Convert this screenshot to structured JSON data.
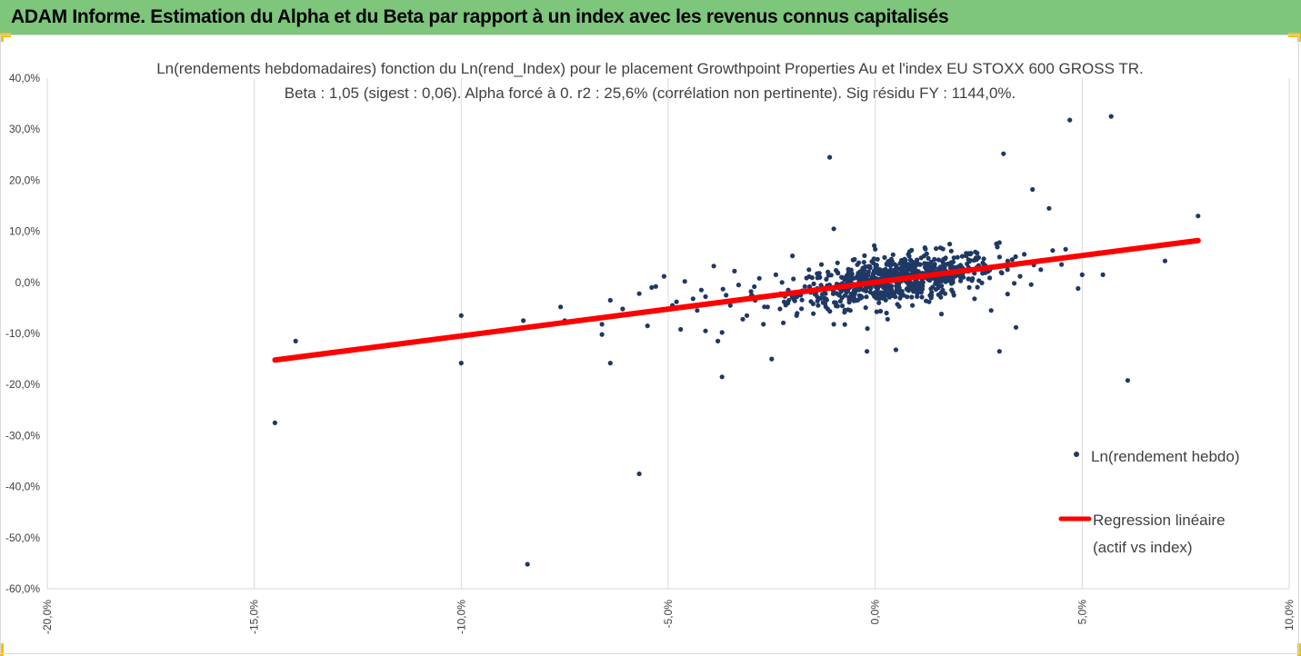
{
  "banner": {
    "title": "ADAM Informe. Estimation du Alpha et du Beta par rapport à un index avec les revenus connus capitalisés"
  },
  "colors": {
    "banner_bg": "#7dc67c",
    "accent_corner": "#f2c200",
    "points": "#1f3864",
    "regression": "#ff0000",
    "grid": "#d9d9d9"
  },
  "chart_data": {
    "type": "scatter",
    "title_line1": "Ln(rendements hebdomadaires) fonction du Ln(rend_Index) pour le placement Growthpoint Properties Au et l'index EU STOXX 600 GROSS TR.",
    "title_line2": "Beta : 1,05 (sigest : 0,06). Alpha forcé à 0. r2 : 25,6% (corrélation non pertinente). Sig résidu FY : 1144,0%.",
    "xlim": [
      -20,
      10
    ],
    "ylim": [
      -60,
      40
    ],
    "x_ticks": [
      "-20,0%",
      "-15,0%",
      "-10,0%",
      "-5,0%",
      "0,0%",
      "5,0%",
      "10,0%"
    ],
    "y_ticks": [
      "40,0%",
      "30,0%",
      "20,0%",
      "10,0%",
      "0,0%",
      "-10,0%",
      "-20,0%",
      "-30,0%",
      "-40,0%",
      "-50,0%",
      "-60,0%"
    ],
    "grid": "vertical",
    "legend_position": "right",
    "series": [
      {
        "name": "Ln(rendement hebdo)",
        "kind": "scatter",
        "points": [
          [
            -14.5,
            -27.5
          ],
          [
            -14,
            -11.5
          ],
          [
            -10,
            -6.5
          ],
          [
            -10,
            -15.8
          ],
          [
            -8.5,
            -7.5
          ],
          [
            -8.4,
            -55.2
          ],
          [
            -7.6,
            -4.8
          ],
          [
            -7.5,
            -7.5
          ],
          [
            -6.6,
            -8.2
          ],
          [
            -6.6,
            -10.2
          ],
          [
            -6.4,
            -3.5
          ],
          [
            -6.4,
            -15.8
          ],
          [
            -6.1,
            -5.2
          ],
          [
            -5.7,
            -37.5
          ],
          [
            -5.7,
            -2.2
          ],
          [
            -5.6,
            -5.8
          ],
          [
            -5.5,
            -8.5
          ],
          [
            -5.4,
            -1
          ],
          [
            -5.3,
            -0.8
          ],
          [
            -5.1,
            1.2
          ],
          [
            -4.9,
            -4.5
          ],
          [
            -4.8,
            -3.8
          ],
          [
            -4.7,
            -9.2
          ],
          [
            -4.6,
            0.2
          ],
          [
            -4.4,
            -3.2
          ],
          [
            -4.3,
            -5.5
          ],
          [
            -4.2,
            -1.5
          ],
          [
            -4.1,
            -2.8
          ],
          [
            -4.1,
            -9.5
          ],
          [
            -4,
            -4.2
          ],
          [
            -3.9,
            3.2
          ],
          [
            -3.8,
            -11.5
          ],
          [
            -3.7,
            -18.5
          ],
          [
            -3.7,
            -9.8
          ],
          [
            -3.6,
            -2.5
          ],
          [
            -3.5,
            -4.5
          ],
          [
            -3.4,
            2.2
          ],
          [
            -3.3,
            -0.5
          ],
          [
            -3.2,
            -7.2
          ],
          [
            -3.1,
            -6.5
          ],
          [
            -3,
            -1.8
          ],
          [
            -2.9,
            -3.5
          ],
          [
            -2.8,
            0.8
          ],
          [
            -2.7,
            -8.2
          ],
          [
            -2.6,
            -4.8
          ],
          [
            -2.6,
            -2.8
          ],
          [
            -2.5,
            -15
          ],
          [
            -2.4,
            1.5
          ],
          [
            -2.3,
            -5.2
          ],
          [
            -2.2,
            -3.8
          ],
          [
            -2.1,
            -1.5
          ],
          [
            -2,
            5.2
          ],
          [
            -1.9,
            -6.5
          ],
          [
            -1.8,
            -2.5
          ],
          [
            -1.7,
            -0.8
          ],
          [
            -1.6,
            2.5
          ],
          [
            -1.5,
            -4.2
          ],
          [
            -1.4,
            -1.2
          ],
          [
            -1.3,
            3.5
          ],
          [
            -1.2,
            -2.2
          ],
          [
            -1.1,
            24.5
          ],
          [
            -1,
            10.5
          ],
          [
            -1,
            -8.2
          ],
          [
            -0.9,
            1.8
          ],
          [
            -0.8,
            -3
          ],
          [
            -0.7,
            0.5
          ],
          [
            -0.6,
            -5.5
          ],
          [
            -0.5,
            4.5
          ],
          [
            -0.4,
            -1.5
          ],
          [
            -0.3,
            2.8
          ],
          [
            -0.2,
            -13.5
          ],
          [
            -0.1,
            -0.5
          ],
          [
            0,
            6.5
          ],
          [
            0.1,
            -3.2
          ],
          [
            0.2,
            1.2
          ],
          [
            0.3,
            -7.2
          ],
          [
            0.4,
            3.8
          ],
          [
            0.5,
            -13.2
          ],
          [
            0.6,
            -2.2
          ],
          [
            0.7,
            0.8
          ],
          [
            0.8,
            5.5
          ],
          [
            0.9,
            -4.5
          ],
          [
            1,
            2
          ],
          [
            1.1,
            -1.2
          ],
          [
            1.2,
            6.8
          ],
          [
            1.3,
            -3.8
          ],
          [
            1.4,
            3.2
          ],
          [
            1.5,
            0.2
          ],
          [
            1.6,
            -6.2
          ],
          [
            1.7,
            4.8
          ],
          [
            1.8,
            7.5
          ],
          [
            1.9,
            -2.5
          ],
          [
            2,
            1.8
          ],
          [
            2.2,
            5.2
          ],
          [
            2.4,
            -3.2
          ],
          [
            2.6,
            3.8
          ],
          [
            2.8,
            -5.5
          ],
          [
            3,
            7.8
          ],
          [
            3,
            -13.5
          ],
          [
            3.1,
            25.2
          ],
          [
            3.2,
            4.2
          ],
          [
            3.4,
            -8.8
          ],
          [
            3.5,
            1.2
          ],
          [
            3.6,
            5.5
          ],
          [
            3.8,
            18.2
          ],
          [
            4,
            2.5
          ],
          [
            4.2,
            14.5
          ],
          [
            4.5,
            3.5
          ],
          [
            4.6,
            6.5
          ],
          [
            4.7,
            31.8
          ],
          [
            4.9,
            -1.2
          ],
          [
            5,
            1.5
          ],
          [
            5.4,
            5.8
          ],
          [
            5.5,
            1.5
          ],
          [
            5.7,
            32.5
          ],
          [
            6.1,
            -19.2
          ],
          [
            7,
            4.2
          ],
          [
            7.8,
            13
          ]
        ],
        "cluster": {
          "description_note": "",
          "x_mean": 0.5,
          "x_sd": 1.2,
          "y_sd": 2.2,
          "count": 700
        }
      },
      {
        "name": "Regression linéaire\n(actif vs index)",
        "kind": "line",
        "points": [
          [
            -14.5,
            -15.2
          ],
          [
            7.8,
            8.2
          ]
        ]
      }
    ]
  },
  "legend": {
    "scatter_label": "Ln(rendement hebdo)",
    "line_label_1": "Regression linéaire",
    "line_label_2": "(actif vs index)"
  }
}
